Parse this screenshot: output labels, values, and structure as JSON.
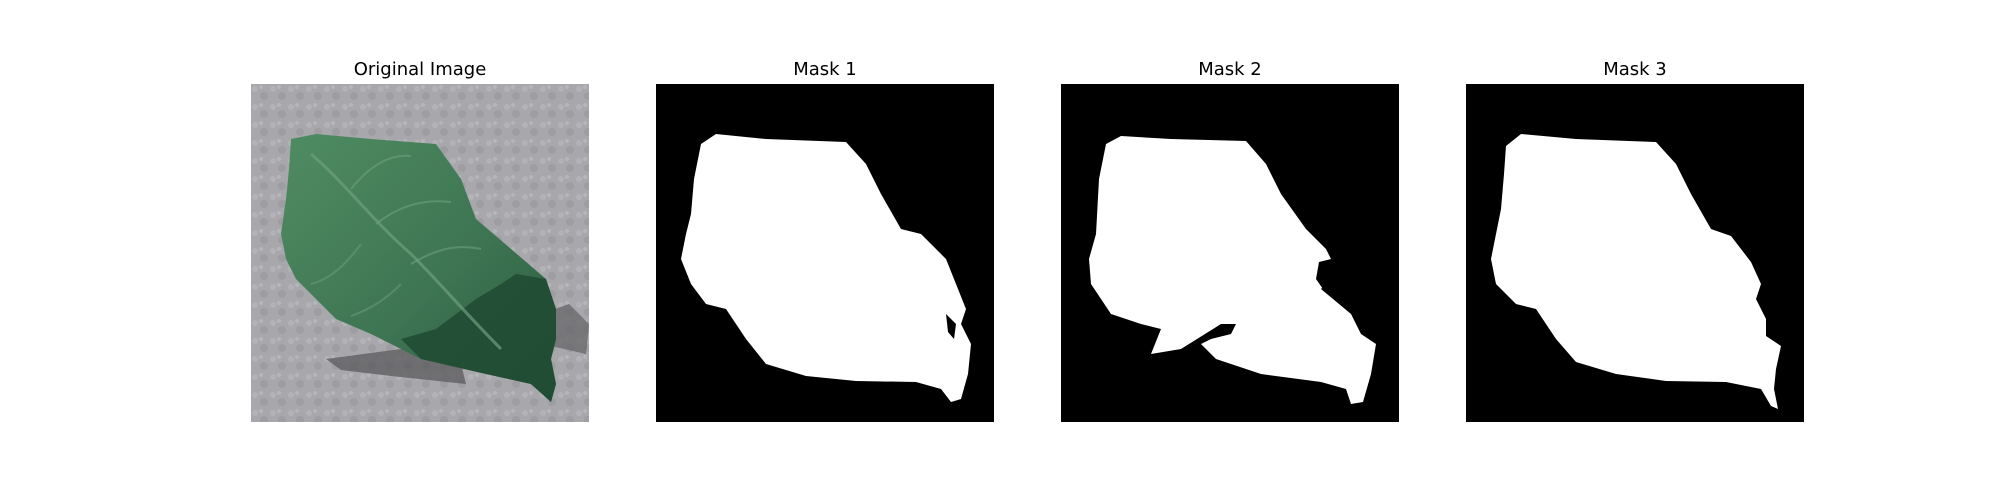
{
  "panels": [
    {
      "title": "Original Image"
    },
    {
      "title": "Mask 1"
    },
    {
      "title": "Mask 2"
    },
    {
      "title": "Mask 3"
    }
  ],
  "colors": {
    "background": "#ffffff",
    "mask_background": "#000000",
    "mask_foreground": "#ffffff",
    "leaf_green": "#3f7a55",
    "leaf_dark": "#1f4a33",
    "surface_gray": "#a9a9ad"
  }
}
